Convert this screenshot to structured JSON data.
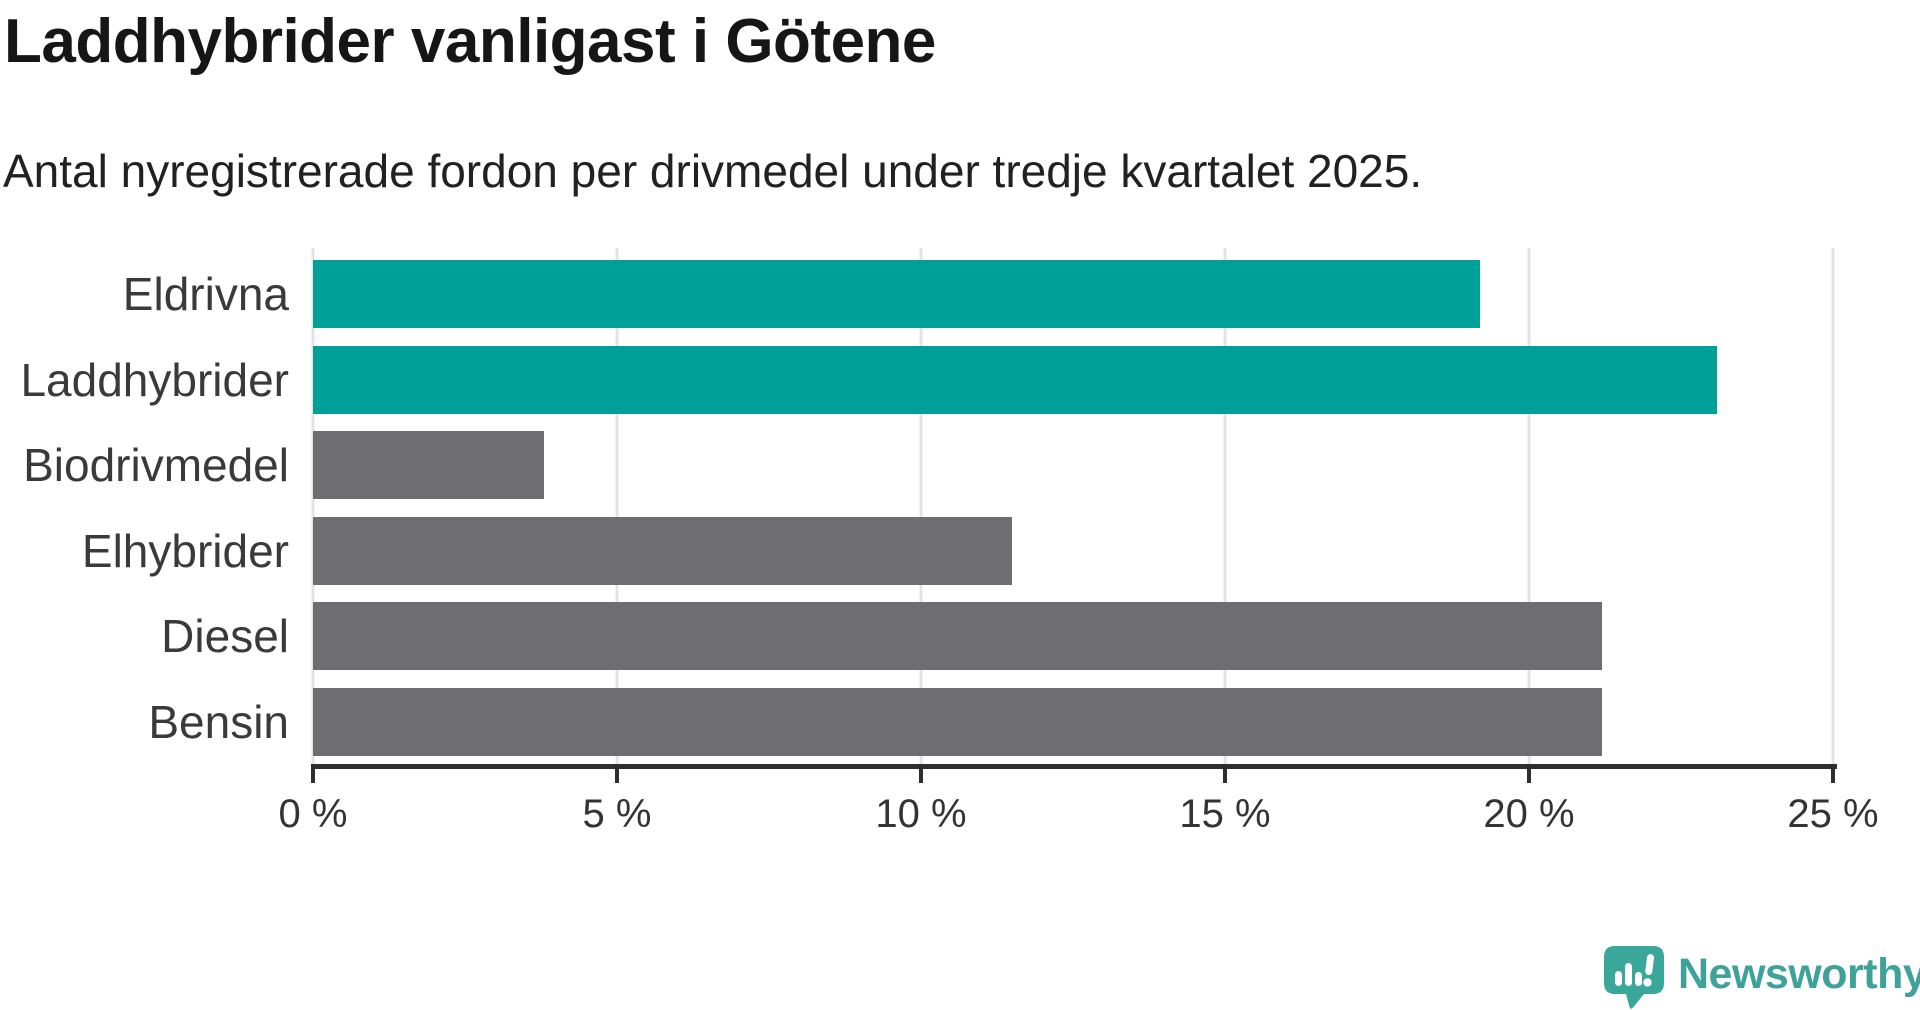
{
  "title": "Laddhybrider vanligast i Götene",
  "subtitle": "Antal nyregistrerade fordon per drivmedel under tredje kvartalet 2025.",
  "chart_data": {
    "type": "bar",
    "orientation": "horizontal",
    "title": "Laddhybrider vanligast i Götene",
    "subtitle": "Antal nyregistrerade fordon per drivmedel under tredje kvartalet 2025.",
    "categories": [
      "Eldrivna",
      "Laddhybrider",
      "Biodrivmedel",
      "Elhybrider",
      "Diesel",
      "Bensin"
    ],
    "values": [
      19.2,
      23.1,
      3.8,
      11.5,
      21.2,
      21.2
    ],
    "unit": "%",
    "xlim": [
      0,
      25
    ],
    "x_ticks": [
      0,
      5,
      10,
      15,
      20,
      25
    ],
    "x_tick_labels": [
      "0 %",
      "5 %",
      "10 %",
      "15 %",
      "20 %",
      "25 %"
    ],
    "grid": true,
    "legend": "none",
    "bar_colors": [
      "#00a099",
      "#00a099",
      "#6d6d72",
      "#6d6d72",
      "#6d6d72",
      "#6d6d72"
    ],
    "highlight_color": "#00a099",
    "default_color": "#6d6d72",
    "gridline_color": "#e3e3e3",
    "axis_color": "#2e2e2e"
  },
  "branding": {
    "logo_text": "Newsworthy",
    "logo_color": "#3fa29a",
    "icon": "newsworthy-speech-bubble-bar-chart-icon",
    "icon_bubble_color": "#3aa79b",
    "icon_glyph_color": "#ffffff"
  }
}
